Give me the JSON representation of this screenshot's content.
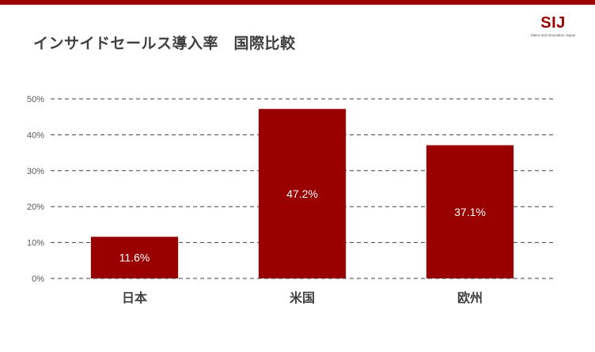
{
  "slide": {
    "title": "インサイドセールス導入率　国際比較"
  },
  "logo": {
    "mark": "SIJ",
    "tagline": "Sales and Innovation Japan"
  },
  "colors": {
    "accent": "#990000",
    "bar": "#990000",
    "title_text": "#404040"
  },
  "chart_data": {
    "type": "bar",
    "categories": [
      "日本",
      "米国",
      "欧州"
    ],
    "values": [
      11.6,
      47.2,
      37.1
    ],
    "data_labels": [
      "11.6%",
      "47.2%",
      "37.1%"
    ],
    "ylim": [
      0,
      50
    ],
    "yticks": [
      0,
      10,
      20,
      30,
      40,
      50
    ],
    "ytick_labels": [
      "0%",
      "10%",
      "20%",
      "30%",
      "40%",
      "50%"
    ],
    "grid": "horizontal dashed",
    "legend": "none"
  }
}
